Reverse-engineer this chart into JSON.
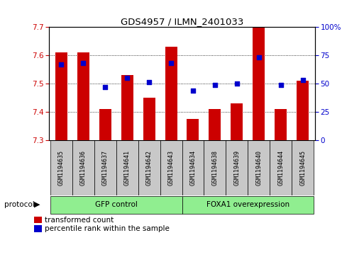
{
  "title": "GDS4957 / ILMN_2401033",
  "samples": [
    "GSM1194635",
    "GSM1194636",
    "GSM1194637",
    "GSM1194641",
    "GSM1194642",
    "GSM1194643",
    "GSM1194634",
    "GSM1194638",
    "GSM1194639",
    "GSM1194640",
    "GSM1194644",
    "GSM1194645"
  ],
  "transformed_count": [
    7.61,
    7.61,
    7.41,
    7.53,
    7.45,
    7.63,
    7.375,
    7.41,
    7.43,
    7.7,
    7.41,
    7.51
  ],
  "percentile_rank": [
    67,
    68,
    47,
    55,
    51,
    68,
    44,
    49,
    50,
    73,
    49,
    53
  ],
  "ylim_left": [
    7.3,
    7.7
  ],
  "ylim_right": [
    0,
    100
  ],
  "yticks_left": [
    7.3,
    7.4,
    7.5,
    7.6,
    7.7
  ],
  "yticks_right": [
    0,
    25,
    50,
    75,
    100
  ],
  "bar_color": "#CC0000",
  "dot_color": "#0000CC",
  "bar_width": 0.55,
  "dot_size": 22,
  "axis_left_color": "#CC0000",
  "axis_right_color": "#0000CC",
  "gfp_label": "GFP control",
  "foxa_label": "FOXA1 overexpression",
  "protocol_label": "protocol",
  "legend_items": [
    "transformed count",
    "percentile rank within the sample"
  ],
  "group_color": "#90EE90",
  "xticklabel_bg": "#C8C8C8",
  "n_gfp": 6,
  "n_foxa": 6
}
